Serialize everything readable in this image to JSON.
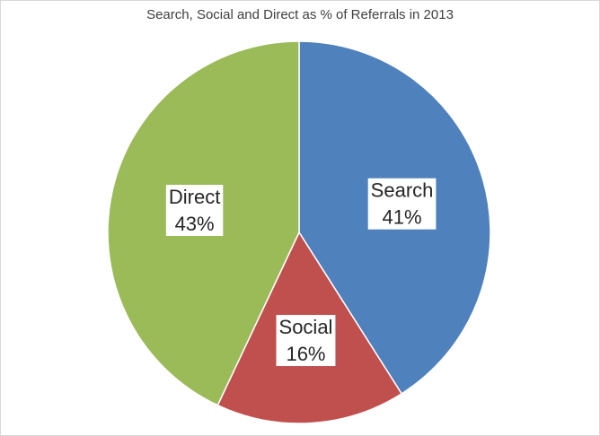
{
  "chart_data": {
    "type": "pie",
    "title": "Search, Social and Direct as % of Referrals in 2013",
    "slices": [
      {
        "name": "Search",
        "value": 41,
        "label": "41%",
        "color": "#4f81bd"
      },
      {
        "name": "Social",
        "value": 16,
        "label": "16%",
        "color": "#c0504d"
      },
      {
        "name": "Direct",
        "value": 43,
        "label": "43%",
        "color": "#9bbb59"
      }
    ],
    "legend": "none"
  }
}
